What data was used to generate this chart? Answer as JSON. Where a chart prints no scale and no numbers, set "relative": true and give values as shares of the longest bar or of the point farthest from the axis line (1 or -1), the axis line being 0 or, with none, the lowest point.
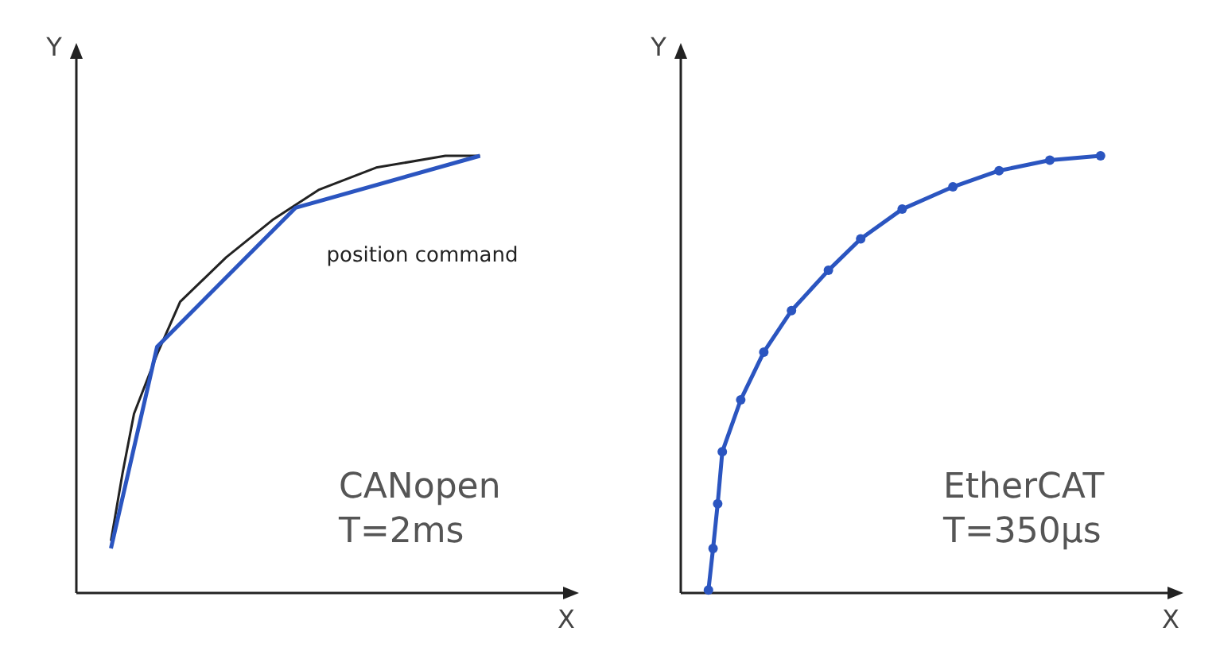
{
  "chart_data": [
    {
      "type": "line",
      "relative": true,
      "xlabel": "X",
      "ylabel": "Y",
      "annotations": [
        "CANopen",
        "T=2ms"
      ],
      "marker": "none",
      "categories": [
        null,
        null,
        null,
        null,
        null,
        null,
        null,
        null,
        null,
        null,
        null,
        null,
        null,
        null,
        null,
        null,
        null,
        null,
        null,
        null,
        null,
        null,
        null,
        null,
        null,
        null,
        null,
        null,
        null,
        null,
        null,
        null,
        null,
        null,
        null,
        null
      ],
      "series": [
        {
          "name": "position command",
          "color": "#222222",
          "values": [
            null,
            null,
            null,
            0.119,
            0.273,
            0.41,
            null,
            0.546,
            null,
            0.666,
            null,
            null,
            null,
            0.768,
            null,
            null,
            null,
            0.853,
            null,
            null,
            null,
            0.922,
            null,
            null,
            null,
            null,
            0.973,
            null,
            null,
            null,
            null,
            null,
            1,
            null,
            null,
            1
          ]
        },
        {
          "color": "#2b55c0",
          "values": [
            null,
            null,
            null,
            0.102,
            null,
            null,
            null,
            0.563,
            null,
            null,
            null,
            null,
            null,
            null,
            null,
            null,
            null,
            null,
            null,
            0.881,
            null,
            null,
            null,
            null,
            null,
            null,
            null,
            null,
            null,
            null,
            null,
            null,
            null,
            null,
            null,
            1
          ]
        }
      ]
    },
    {
      "type": "line",
      "relative": true,
      "xlabel": "X",
      "ylabel": "Y",
      "annotations": [
        "EtherCAT",
        "T=350µs"
      ],
      "marker": "circle",
      "categories": [
        null,
        null,
        null,
        null,
        null,
        null,
        null,
        null,
        null,
        null,
        null,
        null,
        null,
        null,
        null,
        null,
        null,
        null,
        null,
        null,
        null,
        null,
        null,
        null,
        null,
        null,
        null,
        null,
        null,
        null,
        null,
        null,
        null,
        null,
        null,
        null,
        null,
        null,
        null,
        null,
        null,
        null,
        null,
        null,
        null,
        null,
        null,
        null,
        null,
        null,
        null,
        null,
        null,
        null,
        null,
        null,
        null,
        null,
        null,
        null,
        null,
        null,
        null,
        null,
        null,
        null,
        null,
        null,
        null,
        null,
        null,
        null,
        null,
        null,
        null,
        null,
        null,
        null,
        null,
        null,
        null,
        null,
        null,
        null,
        null,
        null,
        null,
        null,
        null,
        null,
        null,
        null
      ],
      "series": [
        {
          "color": "#2b55c0",
          "values": [
            null,
            null,
            null,
            null,
            null,
            null,
            0.007,
            0.102,
            0.204,
            0.323,
            null,
            null,
            null,
            0.442,
            null,
            null,
            null,
            null,
            0.551,
            null,
            null,
            null,
            null,
            null,
            0.646,
            null,
            null,
            null,
            null,
            null,
            null,
            null,
            0.738,
            null,
            null,
            null,
            null,
            null,
            null,
            0.81,
            null,
            null,
            null,
            null,
            null,
            null,
            null,
            null,
            0.878,
            null,
            null,
            null,
            null,
            null,
            null,
            null,
            null,
            null,
            null,
            0.929,
            null,
            null,
            null,
            null,
            null,
            null,
            null,
            null,
            null,
            0.966,
            null,
            null,
            null,
            null,
            null,
            null,
            null,
            null,
            null,
            null,
            0.99,
            null,
            null,
            null,
            null,
            null,
            null,
            null,
            null,
            null,
            null,
            1
          ]
        }
      ]
    }
  ]
}
